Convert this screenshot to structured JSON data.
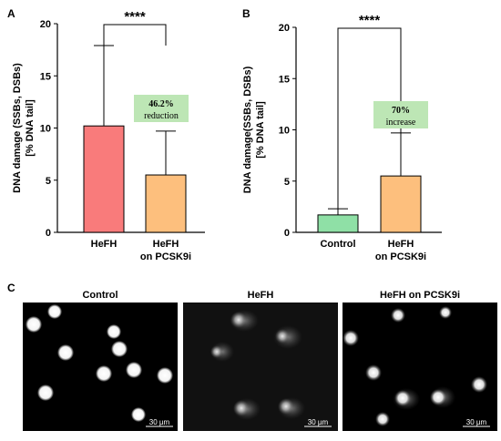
{
  "panels": {
    "a": "A",
    "b": "B",
    "c": "C"
  },
  "colors": {
    "hefh": "#f97b7b",
    "hefh_pcsk9i": "#fdbf7d",
    "control": "#8fe0a6",
    "annotation_box": "#bde6b5"
  },
  "chart_data": [
    {
      "type": "bar",
      "panel": "A",
      "categories": [
        "HeFH",
        "HeFH\non PCSK9i"
      ],
      "values": [
        10.2,
        5.5
      ],
      "error_upper": [
        17.9,
        9.7
      ],
      "ylabel": "DNA damage (SSBs, DSBs)\n[% DNA tail]",
      "ylim": [
        0,
        20
      ],
      "yticks": [
        "0",
        "5",
        "10",
        "15",
        "20"
      ],
      "significance": "****",
      "annotation": {
        "value": "46.2%",
        "text": "reduction"
      },
      "grid": false
    },
    {
      "type": "bar",
      "panel": "B",
      "categories": [
        "Control",
        "HeFH\non PCSK9i"
      ],
      "values": [
        1.7,
        5.5
      ],
      "error_upper": [
        2.3,
        9.7
      ],
      "ylabel": "DNA damage(SSBs, DSBs)\n[% DNA tail]",
      "ylim": [
        0,
        20
      ],
      "yticks": [
        "0",
        "5",
        "10",
        "15",
        "20"
      ],
      "significance": "****",
      "annotation": {
        "value": "70%",
        "text": "increase"
      },
      "grid": false
    }
  ],
  "micrographs": [
    {
      "title": "Control",
      "scale": "30 µm"
    },
    {
      "title": "HeFH",
      "scale": "30 µm"
    },
    {
      "title": "HeFH on PCSK9i",
      "scale": "30 µm"
    }
  ]
}
